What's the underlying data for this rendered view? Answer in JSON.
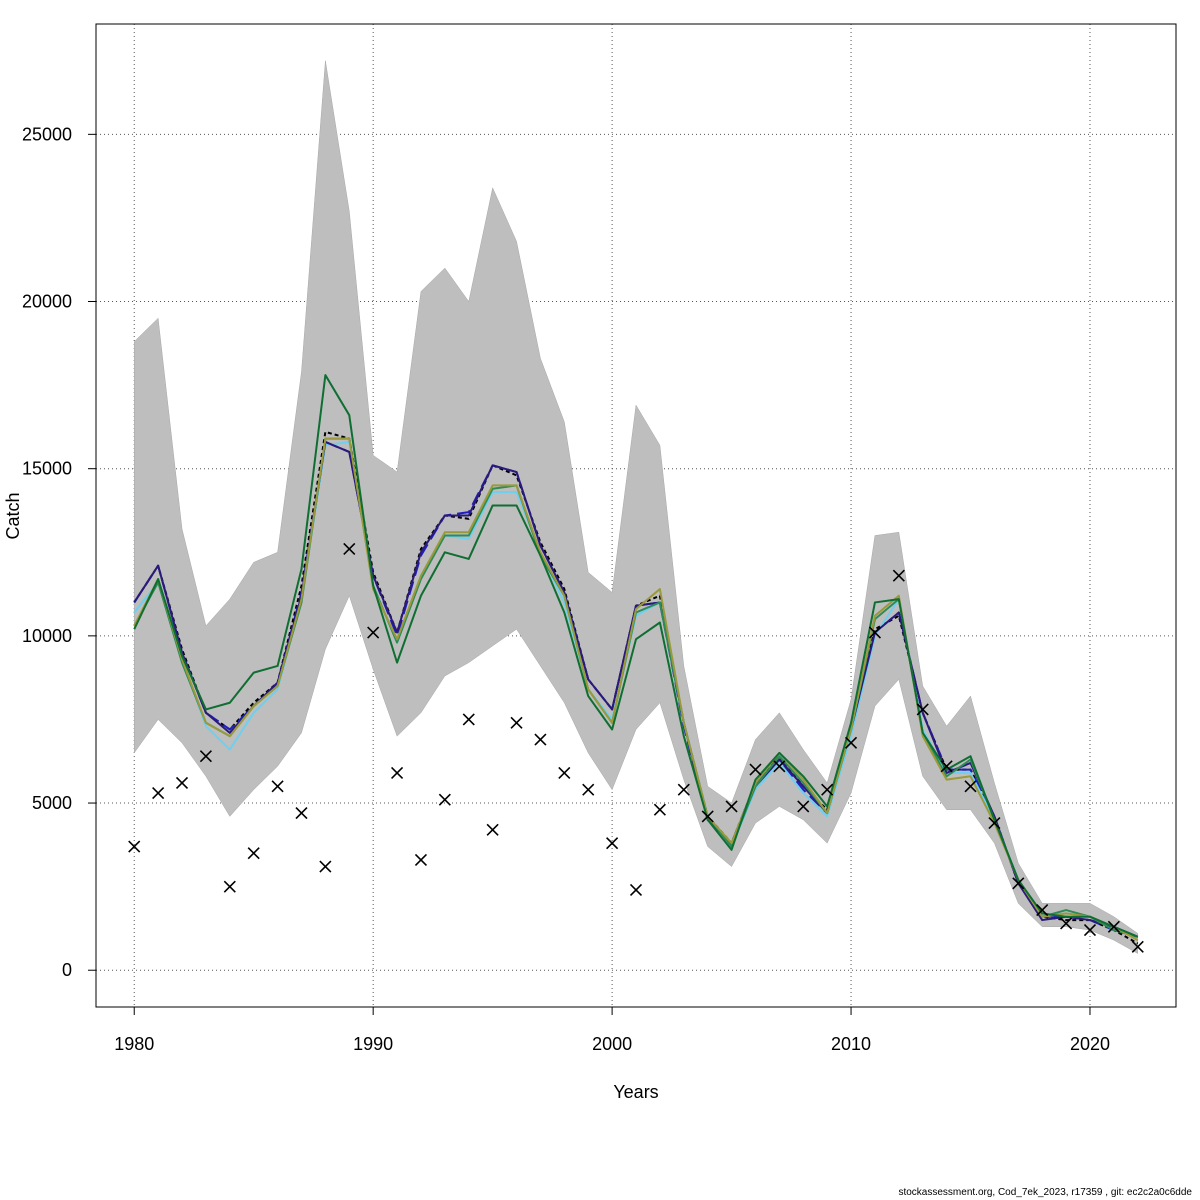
{
  "chart_data": {
    "type": "line",
    "xlabel": "Years",
    "ylabel": "Catch",
    "xlim": [
      1978.4,
      2023.6
    ],
    "ylim": [
      -1100,
      28300
    ],
    "x_ticks": [
      "1980",
      "1990",
      "2000",
      "2010",
      "2020"
    ],
    "y_ticks": [
      "0",
      "5000",
      "10000",
      "15000",
      "20000",
      "25000"
    ],
    "grid": true,
    "x": [
      1980,
      1981,
      1982,
      1983,
      1984,
      1985,
      1986,
      1987,
      1988,
      1989,
      1990,
      1991,
      1992,
      1993,
      1994,
      1995,
      1996,
      1997,
      1998,
      1999,
      2000,
      2001,
      2002,
      2003,
      2004,
      2005,
      2006,
      2007,
      2008,
      2009,
      2010,
      2011,
      2012,
      2013,
      2014,
      2015,
      2016,
      2017,
      2018,
      2019,
      2020,
      2021,
      2022
    ],
    "band": {
      "upper": [
        18800,
        19500,
        13200,
        10300,
        11100,
        12200,
        12500,
        17900,
        27200,
        22700,
        15400,
        14900,
        20300,
        21000,
        20000,
        23400,
        21800,
        18300,
        16400,
        11900,
        11300,
        16900,
        15700,
        9100,
        5500,
        5000,
        6900,
        7700,
        6600,
        5600,
        8100,
        13000,
        13100,
        8500,
        7300,
        8200,
        5600,
        3200,
        2000,
        2000,
        2000,
        1600,
        1100
      ],
      "lower": [
        6500,
        7500,
        6800,
        5800,
        4600,
        5400,
        6100,
        7100,
        9600,
        11200,
        9000,
        7000,
        7700,
        8800,
        9200,
        9700,
        10200,
        9100,
        8000,
        6500,
        5400,
        7200,
        8000,
        5700,
        3700,
        3100,
        4400,
        4900,
        4500,
        3800,
        5300,
        7900,
        8700,
        5800,
        4800,
        4800,
        3800,
        2000,
        1300,
        1300,
        1200,
        900,
        500
      ]
    },
    "series": [
      {
        "color": "#000000",
        "values": [
          11000,
          12100,
          9600,
          7700,
          7200,
          8000,
          8600,
          11500,
          16100,
          15900,
          11900,
          10100,
          12600,
          13600,
          13500,
          15100,
          14800,
          12800,
          11400,
          8700,
          7800,
          10900,
          11200,
          7400,
          4600,
          3800,
          5600,
          6400,
          5500,
          4800,
          7200,
          10200,
          10600,
          7700,
          6000,
          6000,
          4600,
          2600,
          1600,
          1500,
          1500,
          1200,
          800
        ],
        "dash": "4,3"
      },
      {
        "color": "#1f1fc0",
        "values": [
          11000,
          12100,
          9500,
          7700,
          7200,
          7900,
          8600,
          11300,
          15800,
          15500,
          11800,
          10000,
          12400,
          13600,
          13700,
          15100,
          14900,
          12700,
          11300,
          8700,
          7800,
          10900,
          11000,
          7300,
          4500,
          3800,
          5600,
          6300,
          5400,
          4700,
          7200,
          10100,
          10700,
          7700,
          6000,
          6000,
          4600,
          2600,
          1600,
          1600,
          1500,
          1200,
          1000
        ],
        "dash": "14,6"
      },
      {
        "color": "#6fcfef",
        "values": [
          10700,
          11600,
          9300,
          7300,
          6600,
          7700,
          8400,
          11100,
          15700,
          15800,
          11500,
          9800,
          11800,
          13000,
          12900,
          14300,
          14300,
          12500,
          11000,
          8400,
          7500,
          10600,
          11000,
          7400,
          4600,
          3700,
          5400,
          6200,
          5300,
          4600,
          7000,
          10000,
          11100,
          7200,
          5900,
          5900,
          4500,
          2700,
          1600,
          1700,
          1600,
          1300,
          1000
        ]
      },
      {
        "color": "#2b1a7a",
        "values": [
          11000,
          12100,
          9500,
          7700,
          7100,
          7900,
          8600,
          11200,
          15800,
          15500,
          11800,
          10100,
          12500,
          13600,
          13600,
          15100,
          14900,
          12700,
          11300,
          8700,
          7800,
          10900,
          11000,
          7400,
          4500,
          3800,
          5500,
          6300,
          5500,
          4700,
          7200,
          10100,
          10700,
          7700,
          5900,
          6200,
          4600,
          2600,
          1500,
          1600,
          1500,
          1300,
          1000
        ]
      },
      {
        "color": "#2e8b57",
        "values": [
          10300,
          11600,
          9200,
          7400,
          7000,
          7900,
          8500,
          11000,
          15900,
          15900,
          11500,
          9800,
          11700,
          13000,
          13000,
          14400,
          14500,
          12400,
          11200,
          8400,
          7400,
          10700,
          11000,
          7400,
          4600,
          3700,
          5500,
          6400,
          5600,
          4700,
          7200,
          10500,
          11100,
          7100,
          5800,
          6300,
          4500,
          2700,
          1600,
          1800,
          1600,
          1200,
          1000
        ]
      },
      {
        "color": "#9a9a3c",
        "values": [
          10300,
          11700,
          9300,
          7400,
          7000,
          7900,
          8500,
          11100,
          15900,
          15900,
          11400,
          9900,
          11800,
          13100,
          13100,
          14500,
          14500,
          12500,
          11200,
          8400,
          7400,
          10800,
          11400,
          7400,
          4600,
          3800,
          5600,
          6500,
          5700,
          4700,
          7200,
          10600,
          11200,
          7000,
          5700,
          5800,
          4400,
          2700,
          1600,
          1700,
          1600,
          1300,
          900
        ]
      },
      {
        "color": "#0f6e32",
        "values": [
          10200,
          11700,
          9400,
          7800,
          8000,
          8900,
          9100,
          12000,
          17800,
          16600,
          11500,
          9200,
          11200,
          12500,
          12300,
          13900,
          13900,
          12400,
          10700,
          8200,
          7200,
          9900,
          10400,
          7000,
          4500,
          3600,
          5700,
          6500,
          5800,
          4900,
          7400,
          11000,
          11100,
          7100,
          6000,
          6400,
          4500,
          2700,
          1700,
          1600,
          1600,
          1300,
          1000
        ]
      }
    ],
    "observed": [
      3700,
      5300,
      5600,
      6400,
      2500,
      3500,
      5500,
      4700,
      3100,
      12600,
      10100,
      5900,
      3300,
      5100,
      7500,
      4200,
      7400,
      6900,
      5900,
      5400,
      3800,
      2400,
      4800,
      5400,
      4600,
      4900,
      6000,
      6100,
      4900,
      5400,
      6800,
      10100,
      11800,
      7800,
      6100,
      5500,
      4400,
      2600,
      1800,
      1400,
      1200,
      1300,
      700
    ]
  },
  "footer": "stockassessment.org, Cod_7ek_2023, r17359 , git: ec2c2a0c6dde"
}
